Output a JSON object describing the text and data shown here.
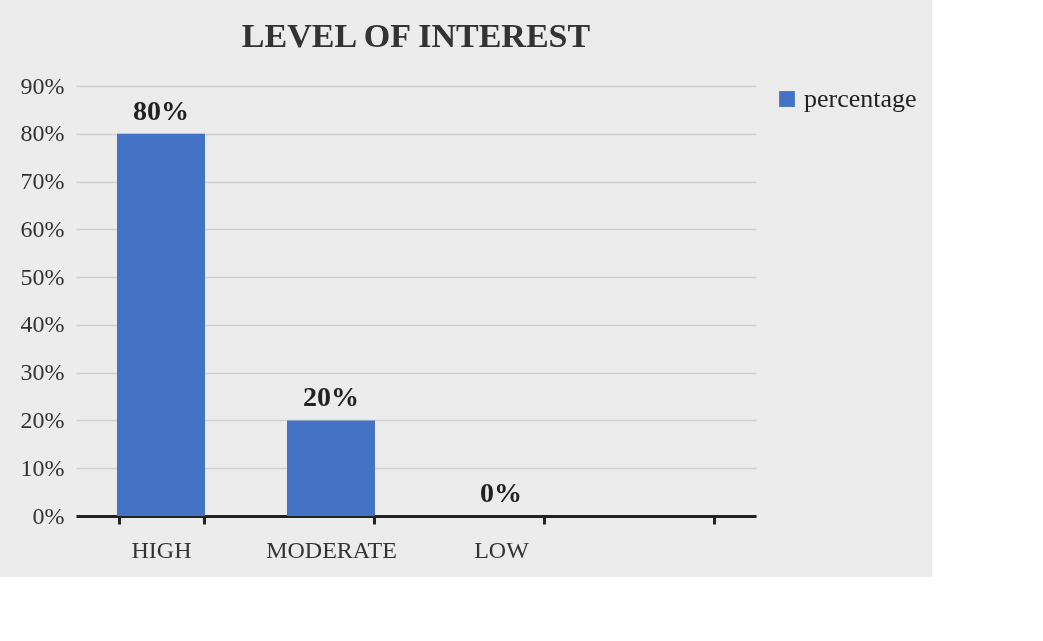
{
  "chart_data": {
    "type": "bar",
    "title": "LEVEL OF INTEREST",
    "categories": [
      "HIGH",
      "MODERATE",
      "LOW",
      null
    ],
    "series": [
      {
        "name": "percentage",
        "color": "#4472c4",
        "values": [
          80,
          20,
          0,
          null
        ],
        "value_labels": [
          "80%",
          "20%",
          "0%",
          null
        ]
      }
    ],
    "ylim": [
      0,
      90
    ],
    "yticks": [
      {
        "value": 0,
        "label": "0%"
      },
      {
        "value": 10,
        "label": "10%"
      },
      {
        "value": 20,
        "label": "20%"
      },
      {
        "value": 30,
        "label": "30%"
      },
      {
        "value": 40,
        "label": "40%"
      },
      {
        "value": 50,
        "label": "50%"
      },
      {
        "value": 60,
        "label": "60%"
      },
      {
        "value": 70,
        "label": "70%"
      },
      {
        "value": 80,
        "label": "80%"
      },
      {
        "value": 90,
        "label": "90%"
      }
    ],
    "grid": "y",
    "legend": "right"
  }
}
